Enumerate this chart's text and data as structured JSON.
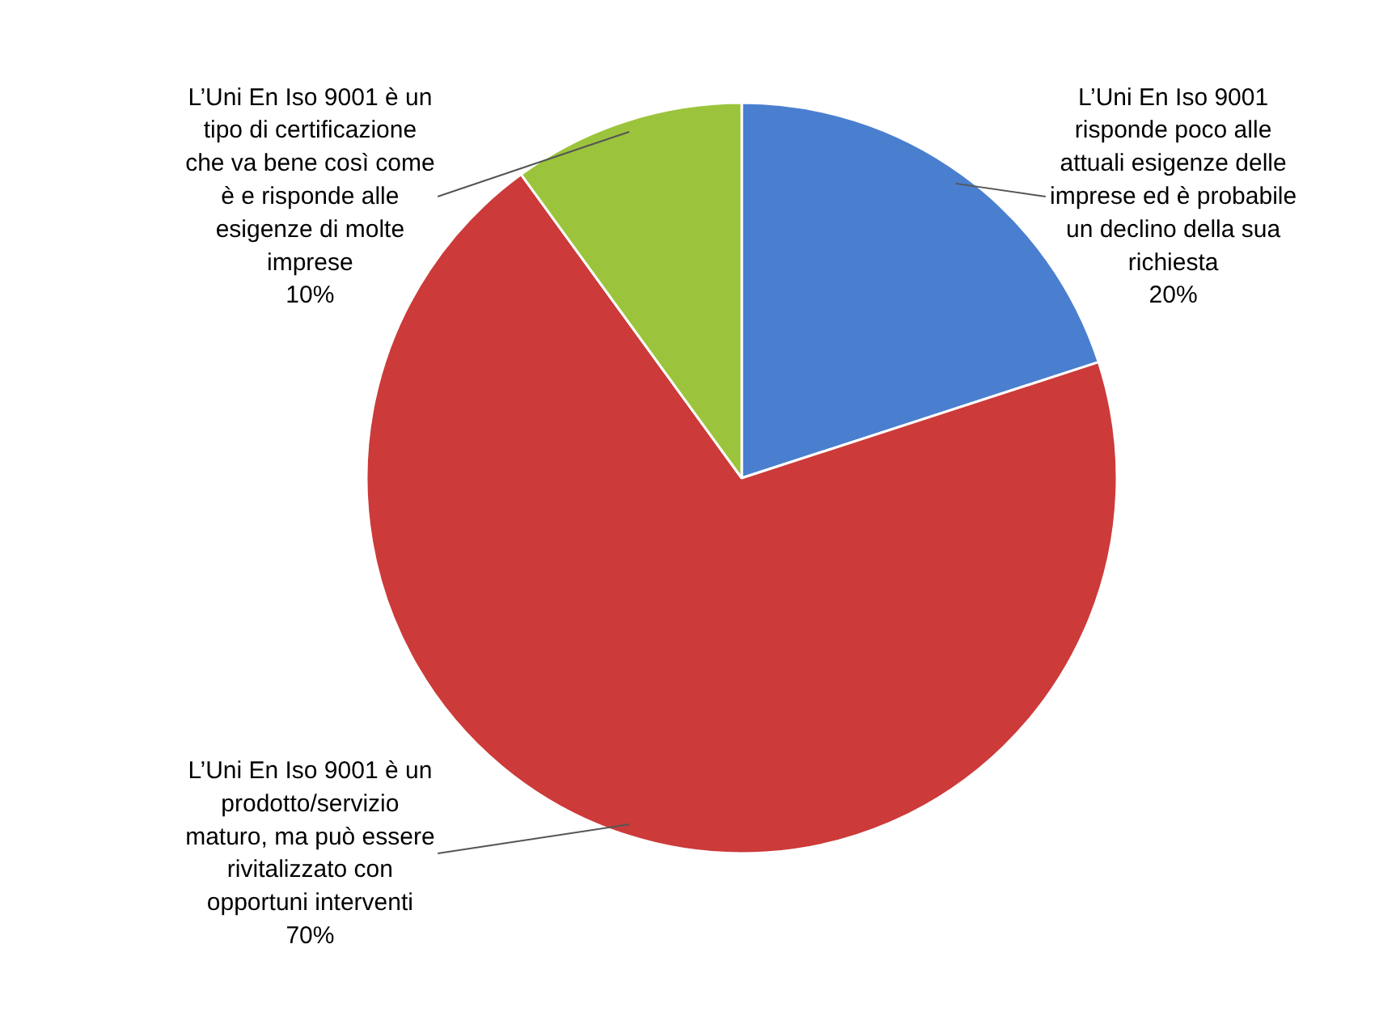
{
  "chart_data": {
    "type": "pie",
    "categories": [
      "L’Uni En Iso 9001 risponde poco alle attuali esigenze delle imprese ed è probabile un declino della sua richiesta",
      "L’Uni En Iso 9001 è un prodotto/servizio maturo, ma può essere rivitalizzato con opportuni interventi",
      "L’Uni En Iso 9001 è un tipo di certificazione che va bene così come è e risponde alle esigenze di molte imprese"
    ],
    "values": [
      20,
      70,
      10
    ],
    "colors": [
      "#4a7fd0",
      "#cc3a3a",
      "#9bc43c"
    ],
    "value_labels": [
      "20%",
      "70%",
      "10%"
    ]
  }
}
